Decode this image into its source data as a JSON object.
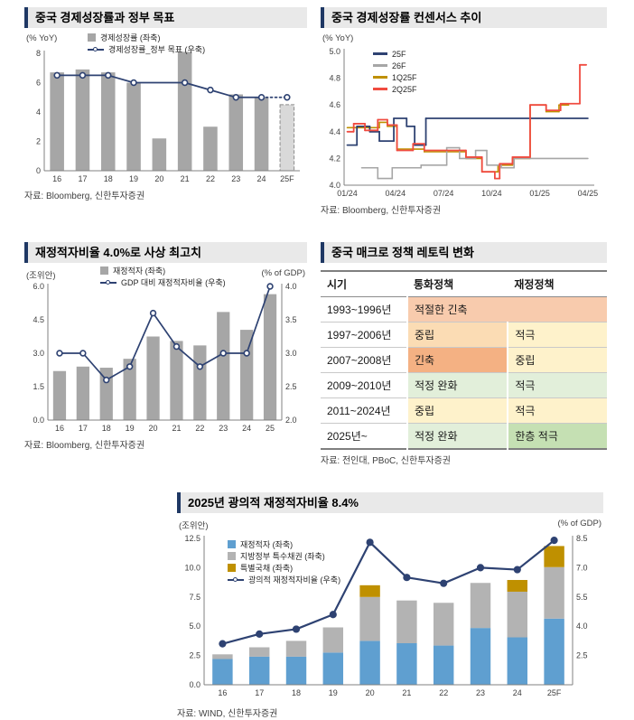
{
  "chart_data": [
    {
      "id": "growth",
      "type": "bar+line",
      "title": "중국 경제성장률과 정부 목표",
      "left_axis_label": "(% YoY)",
      "legend": [
        {
          "label": "경제성장률 (좌축)",
          "swatch": "box",
          "color": "#a6a6a6"
        },
        {
          "label": "경제성장률_정부 목표 (우축)",
          "swatch": "line-dot",
          "color": "#2e4272"
        }
      ],
      "categories": [
        "16",
        "17",
        "18",
        "19",
        "20",
        "21",
        "22",
        "23",
        "24",
        "25F"
      ],
      "ylim": [
        0,
        8
      ],
      "yticks": [
        0,
        2,
        4,
        6,
        8
      ],
      "ydec": 0,
      "series": [
        {
          "name": "경제성장률 (좌축)",
          "type": "bar",
          "color": "#a6a6a6",
          "forecast_last": true,
          "values": [
            6.7,
            6.9,
            6.7,
            6.0,
            2.2,
            8.1,
            3.0,
            5.2,
            5.0,
            4.5
          ]
        },
        {
          "name": "경제성장률_정부 목표 (우축)",
          "type": "line",
          "color": "#2e4272",
          "marker": "circle-open",
          "dash_last_seg": true,
          "values": [
            6.5,
            6.5,
            6.5,
            6.0,
            null,
            6.0,
            5.5,
            5.0,
            5.0,
            5.0
          ]
        }
      ]
    },
    {
      "id": "consensus",
      "type": "line",
      "title": "중국 경제성장률 컨센서스 추이",
      "left_axis_label": "(% YoY)",
      "legend": [
        {
          "label": "25F",
          "swatch": "line",
          "color": "#2e4272"
        },
        {
          "label": "26F",
          "swatch": "line",
          "color": "#a6a6a6"
        },
        {
          "label": "1Q25F",
          "swatch": "line",
          "color": "#bf9000"
        },
        {
          "label": "2Q25F",
          "swatch": "line",
          "color": "#f04b40"
        }
      ],
      "xlim": [
        -0.2,
        15.4
      ],
      "x_ticks": [
        {
          "v": 0,
          "label": "01/24"
        },
        {
          "v": 3,
          "label": "04/24"
        },
        {
          "v": 6,
          "label": "07/24"
        },
        {
          "v": 9,
          "label": "10/24"
        },
        {
          "v": 12,
          "label": "01/25"
        },
        {
          "v": 15,
          "label": "04/25"
        }
      ],
      "ylim": [
        4.0,
        5.0
      ],
      "yticks": [
        4.0,
        4.2,
        4.4,
        4.6,
        4.8,
        5.0
      ],
      "ydec": 1,
      "series": [
        {
          "name": "1Q25F",
          "type": "line",
          "color": "#bf9000",
          "width": 1.6,
          "points": [
            [
              0,
              4.43
            ],
            [
              2,
              4.43
            ],
            [
              2,
              4.47
            ],
            [
              2.5,
              4.47
            ],
            [
              2.5,
              4.44
            ],
            [
              3.1,
              4.44
            ],
            [
              3.1,
              4.27
            ],
            [
              4.8,
              4.27
            ],
            [
              4.8,
              4.25
            ],
            [
              7.4,
              4.25
            ],
            [
              7.4,
              4.2
            ],
            [
              8.4,
              4.2
            ],
            [
              8.4,
              4.1
            ],
            [
              9.4,
              4.1
            ],
            [
              9.4,
              4.15
            ],
            [
              10.3,
              4.15
            ],
            [
              10.3,
              4.2
            ],
            [
              11.4,
              4.2
            ],
            [
              11.4,
              4.6
            ],
            [
              12.4,
              4.6
            ],
            [
              12.4,
              4.55
            ],
            [
              13.2,
              4.55
            ],
            [
              13.2,
              4.6
            ],
            [
              13.8,
              4.6
            ]
          ]
        },
        {
          "name": "26F",
          "type": "line",
          "color": "#a6a6a6",
          "width": 1.6,
          "points": [
            [
              0.9,
              4.13
            ],
            [
              1.9,
              4.13
            ],
            [
              1.9,
              4.05
            ],
            [
              2.8,
              4.05
            ],
            [
              2.8,
              4.13
            ],
            [
              4.6,
              4.13
            ],
            [
              4.6,
              4.15
            ],
            [
              6.2,
              4.15
            ],
            [
              6.2,
              4.28
            ],
            [
              7,
              4.28
            ],
            [
              7,
              4.2
            ],
            [
              8,
              4.2
            ],
            [
              8,
              4.26
            ],
            [
              8.7,
              4.26
            ],
            [
              8.7,
              4.15
            ],
            [
              9.6,
              4.15
            ],
            [
              9.6,
              4.13
            ],
            [
              10.4,
              4.13
            ],
            [
              10.4,
              4.2
            ],
            [
              15,
              4.2
            ]
          ]
        },
        {
          "name": "25F",
          "type": "line",
          "color": "#2e4272",
          "width": 1.8,
          "points": [
            [
              0,
              4.3
            ],
            [
              0.6,
              4.3
            ],
            [
              0.6,
              4.44
            ],
            [
              1.4,
              4.44
            ],
            [
              1.4,
              4.4
            ],
            [
              2,
              4.4
            ],
            [
              2,
              4.33
            ],
            [
              2.9,
              4.33
            ],
            [
              2.9,
              4.5
            ],
            [
              3.7,
              4.5
            ],
            [
              3.7,
              4.44
            ],
            [
              4.2,
              4.44
            ],
            [
              4.2,
              4.3
            ],
            [
              4.9,
              4.3
            ],
            [
              4.9,
              4.5
            ],
            [
              15,
              4.5
            ]
          ]
        },
        {
          "name": "2Q25F",
          "type": "line",
          "color": "#f04b40",
          "width": 1.8,
          "points": [
            [
              0,
              4.4
            ],
            [
              0.4,
              4.4
            ],
            [
              0.4,
              4.46
            ],
            [
              1.1,
              4.46
            ],
            [
              1.1,
              4.41
            ],
            [
              1.9,
              4.41
            ],
            [
              1.9,
              4.49
            ],
            [
              2.5,
              4.49
            ],
            [
              2.5,
              4.45
            ],
            [
              3.1,
              4.45
            ],
            [
              3.1,
              4.26
            ],
            [
              4.1,
              4.26
            ],
            [
              4.1,
              4.31
            ],
            [
              4.8,
              4.31
            ],
            [
              4.8,
              4.26
            ],
            [
              7.4,
              4.26
            ],
            [
              7.4,
              4.21
            ],
            [
              8.4,
              4.21
            ],
            [
              8.4,
              4.1
            ],
            [
              9.2,
              4.1
            ],
            [
              9.2,
              4.05
            ],
            [
              9.5,
              4.05
            ],
            [
              9.5,
              4.16
            ],
            [
              10.3,
              4.16
            ],
            [
              10.3,
              4.21
            ],
            [
              11.4,
              4.21
            ],
            [
              11.4,
              4.6
            ],
            [
              12.4,
              4.6
            ],
            [
              12.4,
              4.56
            ],
            [
              13.3,
              4.56
            ],
            [
              13.3,
              4.61
            ],
            [
              14.5,
              4.61
            ],
            [
              14.5,
              4.9
            ],
            [
              14.9,
              4.9
            ]
          ]
        }
      ]
    },
    {
      "id": "deficit",
      "type": "bar+line",
      "title": "재정적자비율 4.0%로 사상 최고치",
      "left_axis_label": "(조위안)",
      "right_axis_label": "(% of GDP)",
      "legend": [
        {
          "label": "재정적자 (좌축)",
          "swatch": "box",
          "color": "#a6a6a6"
        },
        {
          "label": "GDP 대비 재정적자비율 (우축)",
          "swatch": "line-dot",
          "color": "#2e4272"
        }
      ],
      "categories": [
        "16",
        "17",
        "18",
        "19",
        "20",
        "21",
        "22",
        "23",
        "24",
        "25"
      ],
      "ylim": [
        0,
        6
      ],
      "yticks": [
        0,
        1.5,
        3,
        4.5,
        6
      ],
      "ydec": 1,
      "right_axis": {
        "min": 2,
        "max": 4,
        "left_min": 0,
        "left_max": 6,
        "ticks": [
          2,
          2.5,
          3,
          3.5,
          4
        ],
        "dec": 1
      },
      "series": [
        {
          "name": "재정적자 (좌축)",
          "type": "bar",
          "color": "#a6a6a6",
          "values": [
            2.2,
            2.4,
            2.35,
            2.75,
            3.75,
            3.55,
            3.35,
            4.85,
            4.05,
            5.65
          ]
        },
        {
          "name": "GDP 대비 재정적자비율 (우축)",
          "type": "line",
          "axis": "right",
          "color": "#2e4272",
          "marker": "circle-open",
          "values": [
            3.0,
            3.0,
            2.6,
            2.8,
            3.6,
            3.1,
            2.8,
            3.0,
            3.0,
            4.0
          ]
        }
      ]
    },
    {
      "id": "broad",
      "type": "stacked-bar+line",
      "title": "2025년 광의적 재정적자비율 8.4%",
      "left_axis_label": "(조위안)",
      "right_axis_label": "(% of GDP)",
      "legend": [
        {
          "label": "재정적자 (좌축)",
          "swatch": "box",
          "color": "#5f9fd0"
        },
        {
          "label": "지방정부 특수채권 (좌축)",
          "swatch": "box",
          "color": "#b3b3b3"
        },
        {
          "label": "특별국채 (좌축)",
          "swatch": "box",
          "color": "#bf9000"
        },
        {
          "label": "광의적 재정적자비율 (우축)",
          "swatch": "line-dot",
          "color": "#2e4272"
        }
      ],
      "categories": [
        "16",
        "17",
        "18",
        "19",
        "20",
        "21",
        "22",
        "23",
        "24",
        "25F"
      ],
      "ylim": [
        0,
        12.5
      ],
      "yticks": [
        0,
        2.5,
        5,
        7.5,
        10,
        12.5
      ],
      "ydec": 1,
      "right_axis": {
        "min": 2.5,
        "max": 8.5,
        "left_min": 2.5,
        "left_max": 12.5,
        "ticks": [
          2.5,
          4,
          5.5,
          7,
          8.5
        ],
        "dec": 1
      },
      "series": [
        {
          "name": "재정적자 (좌축)",
          "type": "bar",
          "stack": "a",
          "color": "#5f9fd0",
          "values": [
            2.2,
            2.4,
            2.4,
            2.75,
            3.75,
            3.55,
            3.35,
            4.85,
            4.05,
            5.65
          ]
        },
        {
          "name": "지방정부 특수채권 (좌축)",
          "type": "bar",
          "stack": "a",
          "color": "#b3b3b3",
          "values": [
            0.4,
            0.8,
            1.35,
            2.15,
            3.75,
            3.65,
            3.65,
            3.85,
            3.9,
            4.4
          ]
        },
        {
          "name": "특별국채 (좌축)",
          "type": "bar",
          "stack": "a",
          "color": "#bf9000",
          "values": [
            0,
            0,
            0,
            0,
            1.0,
            0,
            0,
            0,
            1.0,
            1.8
          ]
        },
        {
          "name": "광의적 재정적자비율 (우축)",
          "type": "line",
          "axis": "right",
          "color": "#2e4272",
          "marker": "circle",
          "width": 2.2,
          "values": [
            3.1,
            3.6,
            3.85,
            4.6,
            8.3,
            6.5,
            6.2,
            7.0,
            6.9,
            8.4
          ]
        }
      ]
    }
  ],
  "policy_table": {
    "title": "중국 매크로 정책 레토릭 변화",
    "source": "자료: 전인대, PBoC, 신한투자증권",
    "columns": [
      "시기",
      "통화정책",
      "재정정책"
    ],
    "rows": [
      {
        "period": "1993~1996년",
        "cells": [
          {
            "text": "적절한 긴축",
            "bg": "#f8cbad",
            "span": 2
          }
        ]
      },
      {
        "period": "1997~2006년",
        "cells": [
          {
            "text": "중립",
            "bg": "#fbdcb4"
          },
          {
            "text": "적극",
            "bg": "#fef2cb"
          }
        ]
      },
      {
        "period": "2007~2008년",
        "cells": [
          {
            "text": "긴축",
            "bg": "#f4b183"
          },
          {
            "text": "중립",
            "bg": "#fef2cb"
          }
        ]
      },
      {
        "period": "2009~2010년",
        "cells": [
          {
            "text": "적정 완화",
            "bg": "#e2efda"
          },
          {
            "text": "적극",
            "bg": "#e2efda"
          }
        ]
      },
      {
        "period": "2011~2024년",
        "cells": [
          {
            "text": "중립",
            "bg": "#fef2cb"
          },
          {
            "text": "적극",
            "bg": "#fef2cb"
          }
        ]
      },
      {
        "period": "2025년~",
        "cells": [
          {
            "text": "적정 완화",
            "bg": "#e2efda"
          },
          {
            "text": "한층 적극",
            "bg": "#c5e0b3"
          }
        ]
      }
    ]
  },
  "sources": {
    "growth": "자료: Bloomberg, 신한투자증권",
    "consensus": "자료: Bloomberg, 신한투자증권",
    "deficit": "자료: Bloomberg, 신한투자증권",
    "broad": "자료: WIND, 신한투자증권"
  },
  "colors": {
    "accent_navy": "#1f3864",
    "title_bar_bg": "#e9e9e9",
    "bar_gray": "#a6a6a6",
    "forecast_bar": "#d9d9d9",
    "line_navy": "#2e4272",
    "line_red": "#f04b40",
    "line_yellow": "#bf9000",
    "bar_blue": "#5f9fd0"
  }
}
